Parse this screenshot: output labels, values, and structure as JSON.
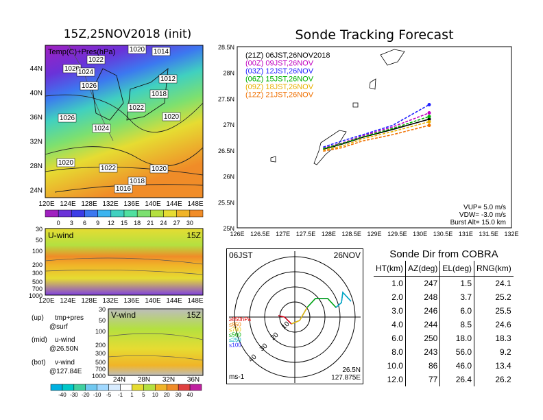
{
  "left_panel": {
    "title": "15Z,25NOV2018 (init)",
    "map": {
      "label": "Temp(C)+Pres(hPa)",
      "lat_ticks": [
        "44N",
        "40N",
        "36N",
        "32N",
        "28N",
        "24N"
      ],
      "lon_ticks": [
        "120E",
        "124E",
        "128E",
        "132E",
        "136E",
        "140E",
        "144E",
        "148E"
      ],
      "isobar_labels": [
        "1020",
        "1014",
        "1022",
        "1020",
        "1024",
        "1026",
        "1012",
        "1018",
        "1022",
        "1026",
        "1020",
        "1024",
        "1020",
        "1022",
        "1020",
        "1018",
        "1016"
      ],
      "colorbar_ticks": [
        "0",
        "3",
        "6",
        "9",
        "12",
        "15",
        "18",
        "21",
        "24",
        "27",
        "30"
      ],
      "colorbar_colors": [
        "#a020c0",
        "#6a32d8",
        "#3c3ce6",
        "#3c78f0",
        "#3cb4f0",
        "#40d0c0",
        "#50e0a0",
        "#7ce070",
        "#b4e040",
        "#e6dc32",
        "#f0b428",
        "#f08c28"
      ]
    },
    "uwind": {
      "label": "U-wind",
      "time": "15Z",
      "p_ticks": [
        "30",
        "50",
        "100",
        "200",
        "300",
        "500",
        "700",
        "1000"
      ],
      "lon_ticks": [
        "120E",
        "124E",
        "128E",
        "132E",
        "136E",
        "140E",
        "144E",
        "148E"
      ]
    },
    "vwind": {
      "label": "V-wind",
      "time": "15Z",
      "p_ticks": [
        "30",
        "50",
        "100",
        "200",
        "300",
        "500",
        "700",
        "1000"
      ],
      "lat_ticks": [
        "24N",
        "28N",
        "32N",
        "36N"
      ],
      "colorbar_ticks": [
        "-40",
        "-30",
        "-20",
        "-10",
        "-5",
        "-1",
        "1",
        "5",
        "10",
        "20",
        "30",
        "40"
      ]
    },
    "notes": [
      {
        "key": "(up)",
        "value": "tmp+pres"
      },
      {
        "key": "",
        "value": "@surf"
      },
      {
        "key": "(mid)",
        "value": "u-wind"
      },
      {
        "key": "",
        "value": "@26.50N"
      },
      {
        "key": "(bot)",
        "value": "v-wind"
      },
      {
        "key": "",
        "value": "@127.84E"
      }
    ]
  },
  "tracking": {
    "title": "Sonde Tracking Forecast",
    "lat_ticks": [
      "28.5N",
      "28N",
      "27.5N",
      "27N",
      "26.5N",
      "26N",
      "25.5N",
      "25N"
    ],
    "lon_ticks": [
      "126E",
      "126.5E",
      "127E",
      "127.5E",
      "128E",
      "128.5E",
      "129E",
      "129.5E",
      "130E",
      "130.5E",
      "131E",
      "131.5E",
      "132E"
    ],
    "legend": [
      {
        "label": "(21Z) 06JST,26NOV2018",
        "color": "#000000"
      },
      {
        "label": "(00Z) 09JST,26NOV",
        "color": "#c000c0"
      },
      {
        "label": "(03Z) 12JST,26NOV",
        "color": "#2020ff"
      },
      {
        "label": "(06Z) 15JST,26NOV",
        "color": "#00b000"
      },
      {
        "label": "(09Z) 18JST,26NOV",
        "color": "#e8b000"
      },
      {
        "label": "(12Z) 21JST,26NOV",
        "color": "#f07000"
      }
    ],
    "params": [
      "VUP= 5.0 m/s",
      "VDW= -3.0 m/s",
      "Burst Alt= 15.0 km"
    ]
  },
  "polar": {
    "time_left": "06JST",
    "time_right": "26NOV",
    "ring_labels": [
      "10",
      "20",
      "30",
      "40"
    ],
    "pressure_legend": [
      {
        "label": "≥850hPa",
        "color": "#e00000"
      },
      {
        "label": "≤850",
        "color": "#f08000"
      },
      {
        "label": "≤700",
        "color": "#e8c000"
      },
      {
        "label": "≤500",
        "color": "#00b000"
      },
      {
        "label": "≤250",
        "color": "#00b0c0"
      },
      {
        "label": "≤100",
        "color": "#2020ff"
      }
    ],
    "unit": "ms-1",
    "location_lat": "26.5N",
    "location_lon": "127.875E"
  },
  "table": {
    "title": "Sonde Dir from COBRA",
    "headers": [
      "HT(km)",
      "AZ(deg)",
      "EL(deg)",
      "RNG(km)"
    ],
    "rows": [
      [
        "1.0",
        "247",
        "1.5",
        "24.1"
      ],
      [
        "2.0",
        "248",
        "3.7",
        "25.2"
      ],
      [
        "3.0",
        "246",
        "6.0",
        "25.5"
      ],
      [
        "4.0",
        "244",
        "8.5",
        "24.6"
      ],
      [
        "6.0",
        "250",
        "18.0",
        "18.3"
      ],
      [
        "8.0",
        "243",
        "56.0",
        "9.2"
      ],
      [
        "10.0",
        "86",
        "46.0",
        "13.4"
      ],
      [
        "12.0",
        "77",
        "26.4",
        "26.2"
      ]
    ]
  },
  "chart_data": [
    {
      "type": "heatmap",
      "title": "15Z,25NOV2018 (init)",
      "label": "Temp(C)+Pres(hPa)",
      "colorbar": [
        0,
        3,
        6,
        9,
        12,
        15,
        18,
        21,
        24,
        27,
        30
      ],
      "isobars_hPa": [
        1012,
        1014,
        1016,
        1018,
        1020,
        1022,
        1024,
        1026
      ]
    },
    {
      "type": "line",
      "title": "Sonde Tracking Forecast",
      "xlim": [
        126,
        132
      ],
      "ylim": [
        25,
        28.5
      ],
      "series": [
        {
          "name": "(21Z) 06JST,26NOV2018",
          "lon": [
            127.88,
            128.3,
            128.75,
            129.4,
            130.2
          ],
          "lat": [
            26.52,
            26.62,
            26.75,
            26.9,
            27.1
          ]
        },
        {
          "name": "(00Z) 09JST,26NOV",
          "lon": [
            127.88,
            128.3,
            128.75,
            129.4,
            130.2
          ],
          "lat": [
            26.54,
            26.64,
            26.78,
            26.95,
            27.22
          ]
        },
        {
          "name": "(03Z) 12JST,26NOV",
          "lon": [
            127.88,
            128.3,
            128.75,
            129.4,
            130.2
          ],
          "lat": [
            26.56,
            26.68,
            26.8,
            26.98,
            27.38
          ]
        },
        {
          "name": "(06Z) 15JST,26NOV",
          "lon": [
            127.88,
            128.3,
            128.75,
            129.4,
            130.2
          ],
          "lat": [
            26.53,
            26.63,
            26.76,
            26.92,
            27.15
          ]
        },
        {
          "name": "(09Z) 18JST,26NOV",
          "lon": [
            127.88,
            128.3,
            128.75,
            129.4,
            130.2
          ],
          "lat": [
            26.5,
            26.58,
            26.72,
            26.86,
            27.05
          ]
        },
        {
          "name": "(12Z) 21JST,26NOV",
          "lon": [
            127.88,
            128.3,
            128.75,
            129.4,
            130.2
          ],
          "lat": [
            26.48,
            26.55,
            26.68,
            26.8,
            26.98
          ]
        }
      ]
    },
    {
      "type": "table",
      "title": "Sonde Dir from COBRA",
      "columns": [
        "HT(km)",
        "AZ(deg)",
        "EL(deg)",
        "RNG(km)"
      ],
      "rows": [
        [
          1.0,
          247,
          1.5,
          24.1
        ],
        [
          2.0,
          248,
          3.7,
          25.2
        ],
        [
          3.0,
          246,
          6.0,
          25.5
        ],
        [
          4.0,
          244,
          8.5,
          24.6
        ],
        [
          6.0,
          250,
          18.0,
          18.3
        ],
        [
          8.0,
          243,
          56.0,
          9.2
        ],
        [
          10.0,
          86,
          46.0,
          13.4
        ],
        [
          12.0,
          77,
          26.4,
          26.2
        ]
      ]
    }
  ]
}
